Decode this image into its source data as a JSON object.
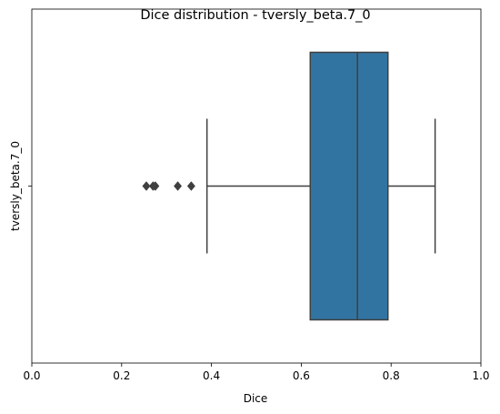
{
  "chart_data": {
    "type": "box",
    "orientation": "horizontal",
    "title": "Dice distribution - tversly_beta.7_0",
    "xlabel": "Dice",
    "ylabel": "",
    "xlim": [
      0.0,
      1.0
    ],
    "xticks": [
      "0.0",
      "0.2",
      "0.4",
      "0.6",
      "0.8",
      "1.0"
    ],
    "categories": [
      "tversly_beta.7_0"
    ],
    "box": {
      "whisker_low": 0.39,
      "q1": 0.62,
      "median": 0.725,
      "q3": 0.793,
      "whisker_high": 0.898,
      "outliers": [
        0.255,
        0.27,
        0.275,
        0.325,
        0.355
      ]
    },
    "box_color": "#3274a1",
    "line_color": "#3f3f3f",
    "grid": false,
    "legend": "none"
  }
}
